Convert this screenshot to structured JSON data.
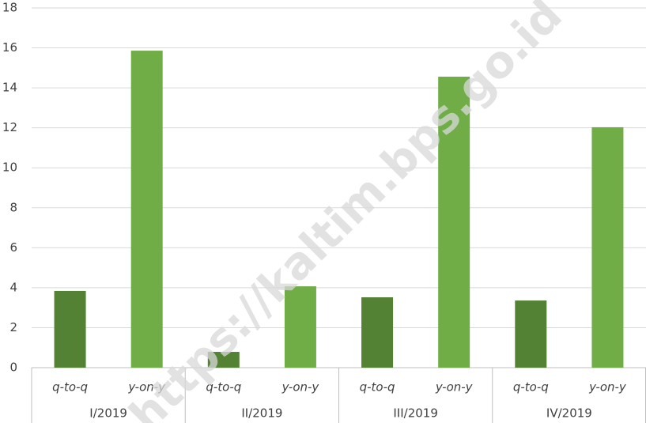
{
  "chart_data": {
    "type": "bar",
    "categories": [
      "I/2019",
      "II/2019",
      "III/2019",
      "IV/2019"
    ],
    "series": [
      {
        "name": "q-to-q",
        "color": "#548235",
        "values": [
          3.84,
          0.79,
          3.52,
          3.36
        ]
      },
      {
        "name": "y-on-y",
        "color": "#70ad47",
        "values": [
          15.86,
          4.07,
          14.56,
          12.03
        ]
      }
    ],
    "ylim": [
      0,
      18
    ],
    "yticks": [
      0,
      2,
      4,
      6,
      8,
      10,
      12,
      14,
      16,
      18
    ],
    "grid": true,
    "watermark": "https://kaltim.bps.go.id"
  }
}
